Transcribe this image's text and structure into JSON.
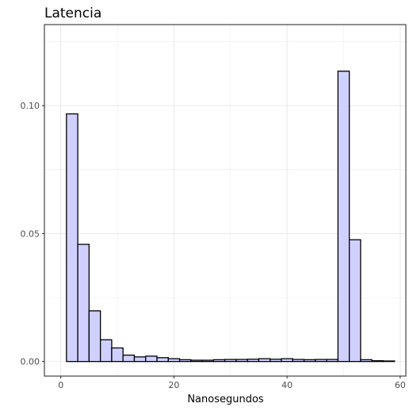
{
  "chart_data": {
    "type": "bar",
    "title": "Latencia",
    "xlabel": "Nanosegundos",
    "ylabel": "",
    "xlim": [
      -2.9,
      61
    ],
    "ylim": [
      -0.0057,
      0.1317
    ],
    "x_ticks": [
      0,
      20,
      40,
      60
    ],
    "x_tick_labels": [
      "0",
      "20",
      "40",
      "60"
    ],
    "y_ticks": [
      0.0,
      0.05,
      0.1
    ],
    "y_tick_labels": [
      "0.00",
      "0.05",
      "0.10"
    ],
    "grid": true,
    "legend": "none",
    "bin_width": 2,
    "bin_starts": [
      1,
      3,
      5,
      7,
      9,
      11,
      13,
      15,
      17,
      19,
      21,
      23,
      25,
      27,
      29,
      31,
      33,
      35,
      37,
      39,
      41,
      43,
      45,
      47,
      49,
      51,
      53,
      55,
      57
    ],
    "values": [
      0.0968,
      0.0458,
      0.0198,
      0.0085,
      0.0053,
      0.0025,
      0.0018,
      0.0021,
      0.0015,
      0.0011,
      0.0007,
      0.0005,
      0.0005,
      0.0007,
      0.0008,
      0.0008,
      0.0009,
      0.0011,
      0.0009,
      0.0011,
      0.0008,
      0.0007,
      0.0008,
      0.0008,
      0.1135,
      0.0476,
      0.0007,
      0.0003,
      0.0002
    ],
    "colors": {
      "bar_fill": "#d0d0ff",
      "bar_stroke": "#000000",
      "grid": "#ebebeb",
      "panel_border": "#333333",
      "axis_text": "#4d4d4d"
    }
  }
}
